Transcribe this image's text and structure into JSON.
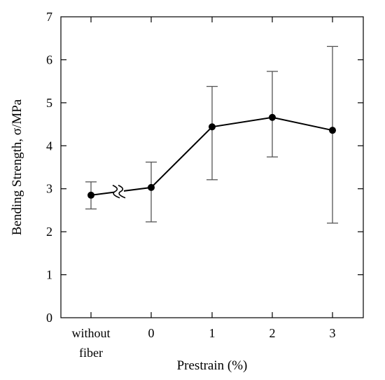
{
  "chart_data": {
    "type": "line",
    "title": "",
    "xlabel": "Prestrain (%)",
    "ylabel": "Bending Strength, σ/MPa",
    "ylim": [
      0,
      7
    ],
    "yticks": [
      "0",
      "1",
      "2",
      "3",
      "4",
      "5",
      "6",
      "7"
    ],
    "categories": [
      {
        "line1": "without",
        "line2": "fiber"
      },
      {
        "line1": "0",
        "line2": ""
      },
      {
        "line1": "1",
        "line2": ""
      },
      {
        "line1": "2",
        "line2": ""
      },
      {
        "line1": "3",
        "line2": ""
      }
    ],
    "series": [
      {
        "values": [
          2.85,
          3.03,
          4.44,
          4.66,
          4.36
        ],
        "err_low": [
          2.53,
          2.23,
          3.21,
          3.74,
          2.2
        ],
        "err_high": [
          3.16,
          3.62,
          5.38,
          5.73,
          6.31
        ]
      }
    ],
    "axis_break": "between first and second category",
    "grid": false,
    "legend": "none"
  }
}
